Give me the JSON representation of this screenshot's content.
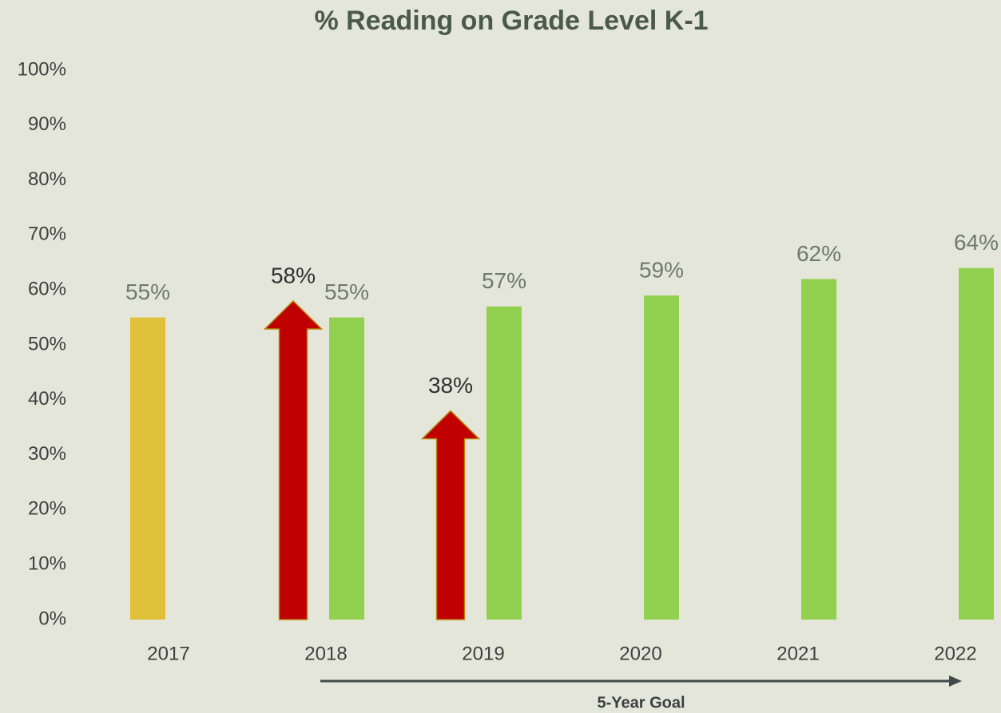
{
  "chart_data": {
    "type": "bar",
    "title": "% Reading on Grade Level K-1",
    "categories": [
      "2017",
      "2018",
      "2019",
      "2020",
      "2021",
      "2022"
    ],
    "series": [
      {
        "color": "#dfc038",
        "values": [
          55,
          null,
          null,
          null,
          null,
          null
        ],
        "value_labels": [
          "55%",
          null,
          null,
          null,
          null,
          null
        ],
        "label_color": "#6e7a6e"
      },
      {
        "color": "#c00000",
        "mark": "arrow",
        "values": [
          null,
          58,
          38,
          null,
          null,
          null
        ],
        "value_labels": [
          null,
          "58%",
          "38%",
          null,
          null,
          null
        ],
        "label_color": "#303030"
      },
      {
        "color": "#92d050",
        "values": [
          null,
          55,
          57,
          59,
          62,
          64
        ],
        "value_labels": [
          null,
          "55%",
          "57%",
          "59%",
          "62%",
          "64%"
        ],
        "label_color": "#6e7a6e"
      }
    ],
    "ylim": [
      0,
      100
    ],
    "yticks": [
      {
        "value": 0,
        "label": "0%"
      },
      {
        "value": 10,
        "label": "10%"
      },
      {
        "value": 20,
        "label": "20%"
      },
      {
        "value": 30,
        "label": "30%"
      },
      {
        "value": 40,
        "label": "40%"
      },
      {
        "value": 50,
        "label": "50%"
      },
      {
        "value": 60,
        "label": "60%"
      },
      {
        "value": 70,
        "label": "70%"
      },
      {
        "value": 80,
        "label": "80%"
      },
      {
        "value": 90,
        "label": "90%"
      },
      {
        "value": 100,
        "label": "100%"
      }
    ],
    "grid": false,
    "annotation": {
      "text": "5-Year Goal",
      "span": [
        "2018",
        "2022"
      ]
    }
  }
}
